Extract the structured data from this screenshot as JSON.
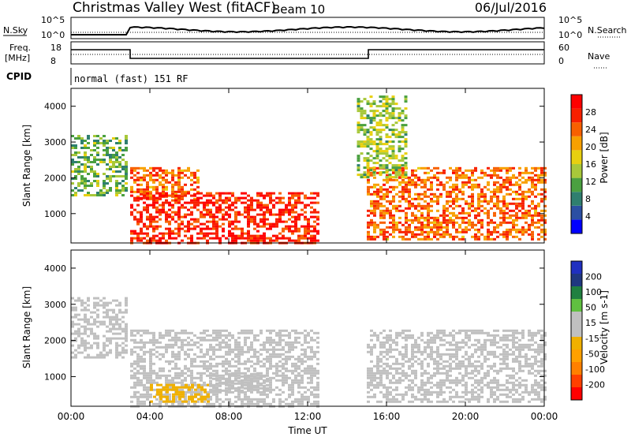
{
  "header": {
    "station": "Christmas Valley West (fitACF)",
    "beam": "Beam 10",
    "date": "06/Jul/2016"
  },
  "ancillary": {
    "nsky_label": "N.Sky",
    "nsky_tick_hi": "10^5",
    "nsky_tick_lo": "10^0",
    "nsearch_label": "N.Search",
    "nsearch_tick_hi": "10^5",
    "nsearch_tick_lo": "10^0",
    "freq_label_1": "Freq.",
    "freq_label_2": "[MHz]",
    "freq_tick_hi": "18",
    "freq_tick_lo": "8",
    "nave_label": "Nave",
    "nave_tick_hi": "60",
    "nave_tick_lo": "0",
    "cpid_label": "CPID",
    "cpid_value": "normal (fast) 151 RF"
  },
  "colors": {
    "power": [
      "#0000ff",
      "#2b4fa3",
      "#2f7f6f",
      "#4aa040",
      "#a8c83a",
      "#e8d010",
      "#f8a000",
      "#f86000",
      "#f82000",
      "#ff0000"
    ],
    "velocity": [
      "#ff0000",
      "#ff4000",
      "#ff8000",
      "#ffa000",
      "#f0b000",
      "#c0c0c0",
      "#c0c0c0",
      "#60c040",
      "#208040",
      "#203880",
      "#2030c0"
    ],
    "ground_scatter": "#bbbbbb"
  },
  "chart_data": [
    {
      "type": "heatmap",
      "name": "power",
      "xlabel": "",
      "ylabel": "Slant Range [km]",
      "yticks": [
        "1000",
        "2000",
        "3000",
        "4000"
      ],
      "ylim": [
        180,
        4500
      ],
      "colorbar": {
        "label": "Power [dB]",
        "ticks": [
          "4",
          "8",
          "12",
          "16",
          "20",
          "24",
          "28"
        ],
        "range": [
          0,
          32
        ]
      },
      "regions": [
        {
          "t0": 0.0,
          "t1": 2.8,
          "r0": 1500,
          "r1": 3200,
          "level": 12
        },
        {
          "t0": 3.0,
          "t1": 6.5,
          "r0": 1400,
          "r1": 2300,
          "level": 24
        },
        {
          "t0": 3.0,
          "t1": 12.5,
          "r0": 200,
          "r1": 1600,
          "level": 28
        },
        {
          "t0": 15.0,
          "t1": 24.0,
          "r0": 300,
          "r1": 2300,
          "level": 24
        },
        {
          "t0": 14.5,
          "t1": 17.0,
          "r0": 2000,
          "r1": 4300,
          "level": 14
        }
      ]
    },
    {
      "type": "heatmap",
      "name": "velocity",
      "xlabel": "Time UT",
      "ylabel": "Slant Range [km]",
      "xticks": [
        "00:00",
        "04:00",
        "08:00",
        "12:00",
        "16:00",
        "20:00",
        "00:00"
      ],
      "yticks": [
        "1000",
        "2000",
        "3000",
        "4000"
      ],
      "ylim": [
        180,
        4500
      ],
      "colorbar": {
        "label": "Velocity [m s-1]",
        "ticks": [
          "200",
          "100",
          "50",
          "15",
          "-15",
          "-50",
          "-100",
          "-200"
        ],
        "range": [
          -250,
          250
        ]
      },
      "regions": [
        {
          "t0": 0.0,
          "t1": 2.8,
          "r0": 1500,
          "r1": 3200,
          "level": 0
        },
        {
          "t0": 3.0,
          "t1": 12.5,
          "r0": 200,
          "r1": 2300,
          "level": 0
        },
        {
          "t0": 4.0,
          "t1": 7.0,
          "r0": 300,
          "r1": 800,
          "level": -60
        },
        {
          "t0": 7.0,
          "t1": 10.0,
          "r0": 600,
          "r1": 1100,
          "level": 40
        },
        {
          "t0": 15.0,
          "t1": 24.0,
          "r0": 300,
          "r1": 2300,
          "level": 0
        }
      ]
    }
  ]
}
